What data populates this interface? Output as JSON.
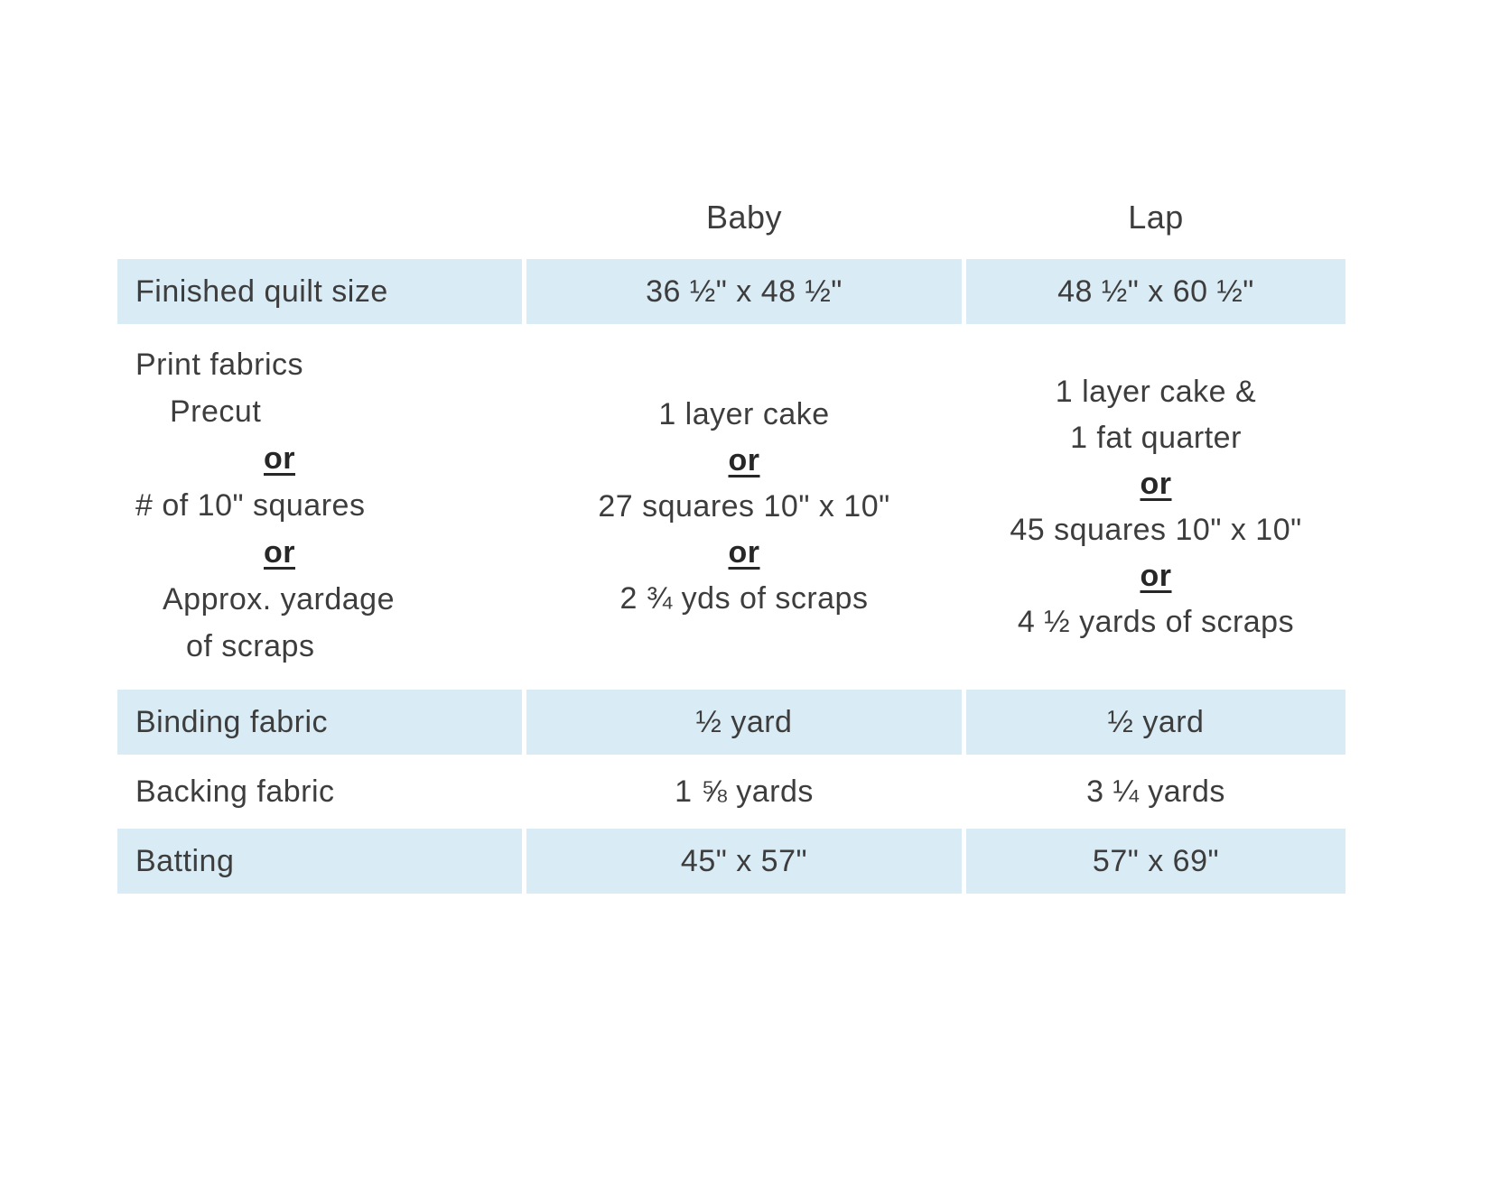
{
  "colors": {
    "row_shade": "#d9ebf4",
    "text": "#3d3d3d"
  },
  "header": {
    "col_baby": "Baby",
    "col_lap": "Lap"
  },
  "rows": {
    "finished": {
      "label": "Finished quilt size",
      "baby": "36 ½\" x 48 ½\"",
      "lap": "48 ½\" x 60 ½\""
    },
    "print": {
      "label_title": "Print fabrics",
      "label_precut": "Precut",
      "or": "or",
      "label_squares": "# of 10\" squares",
      "label_yardage_line1": "Approx. yardage",
      "label_yardage_line2": "of scraps",
      "baby_precut": "1 layer cake",
      "baby_squares": "27 squares 10\" x 10\"",
      "baby_yardage": "2 ¾ yds of scraps",
      "lap_precut_line1": "1 layer cake &",
      "lap_precut_line2": "1 fat quarter",
      "lap_squares": "45 squares 10\" x 10\"",
      "lap_yardage": "4 ½ yards of scraps"
    },
    "binding": {
      "label": "Binding fabric",
      "baby": "½ yard",
      "lap": "½ yard"
    },
    "backing": {
      "label": "Backing fabric",
      "baby": "1 ⅝ yards",
      "lap": "3 ¼ yards"
    },
    "batting": {
      "label": "Batting",
      "baby": "45\" x 57\"",
      "lap": "57\" x 69\""
    }
  }
}
